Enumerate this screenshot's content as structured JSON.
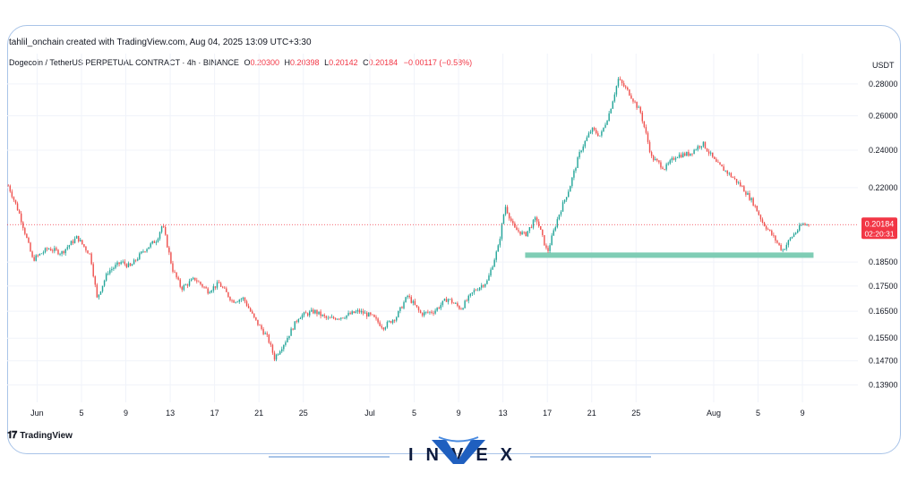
{
  "header": {
    "credit": "tahlil_onchain created with TradingView.com, Aug 04, 2025 13:09 UTC+3:30",
    "symbol": "Dogecoin / TetherUS PERPETUAL CONTRACT · 4h · BINANCE",
    "o_label": "O",
    "o_value": "0.20300",
    "h_label": "H",
    "h_value": "0.20398",
    "l_label": "L",
    "l_value": "0.20142",
    "c_label": "C",
    "c_value": "0.20184",
    "change": "−0.00117 (−0.58%)"
  },
  "footer": {
    "tradingview": "TradingView",
    "brand": "INVEX"
  },
  "colors": {
    "up": "#26a69a",
    "down": "#ef5350",
    "support": "#7fcdb5",
    "price_tag": "#f23645",
    "grid": "#f0f3fa"
  },
  "chart_data": {
    "type": "candlestick",
    "unit": "USDT",
    "y_ticks": [
      "0.28000",
      "0.26000",
      "0.24000",
      "0.22000",
      "0.18500",
      "0.17500",
      "0.16500",
      "0.15500",
      "0.14700",
      "0.13900"
    ],
    "y_tick_values": [
      0.28,
      0.26,
      0.24,
      0.22,
      0.185,
      0.175,
      0.165,
      0.155,
      0.147,
      0.139
    ],
    "log_scale": true,
    "x_ticks": [
      "Jun",
      "5",
      "9",
      "13",
      "17",
      "21",
      "25",
      "Jul",
      "5",
      "9",
      "13",
      "17",
      "21",
      "25",
      "Aug",
      "5",
      "9"
    ],
    "x_tick_days": [
      0,
      4,
      8,
      12,
      16,
      20,
      24,
      30,
      34,
      38,
      42,
      46,
      50,
      54,
      61,
      65,
      69
    ],
    "day_range": [
      -2.7,
      74
    ],
    "last_price": "0.20184",
    "countdown": "02:20:31",
    "last_value": 0.20184,
    "support_level": 0.188,
    "support_days": [
      44,
      70
    ],
    "price_path": [
      [
        -2.6,
        0.221
      ],
      [
        -1.6,
        0.207
      ],
      [
        -0.4,
        0.186
      ],
      [
        1.0,
        0.191
      ],
      [
        2.2,
        0.189
      ],
      [
        3.6,
        0.196
      ],
      [
        4.8,
        0.188
      ],
      [
        5.4,
        0.17
      ],
      [
        6.4,
        0.181
      ],
      [
        7.6,
        0.185
      ],
      [
        8.4,
        0.183
      ],
      [
        9.6,
        0.19
      ],
      [
        10.8,
        0.195
      ],
      [
        11.3,
        0.202
      ],
      [
        12.2,
        0.182
      ],
      [
        13.0,
        0.174
      ],
      [
        14.2,
        0.178
      ],
      [
        15.4,
        0.173
      ],
      [
        16.4,
        0.176
      ],
      [
        17.6,
        0.169
      ],
      [
        18.6,
        0.17
      ],
      [
        19.6,
        0.162
      ],
      [
        20.8,
        0.155
      ],
      [
        21.4,
        0.148
      ],
      [
        22.4,
        0.154
      ],
      [
        23.6,
        0.163
      ],
      [
        25.0,
        0.165
      ],
      [
        26.2,
        0.162
      ],
      [
        27.6,
        0.163
      ],
      [
        29.0,
        0.165
      ],
      [
        30.2,
        0.163
      ],
      [
        31.2,
        0.159
      ],
      [
        32.4,
        0.163
      ],
      [
        33.4,
        0.171
      ],
      [
        34.6,
        0.164
      ],
      [
        35.8,
        0.165
      ],
      [
        37.0,
        0.17
      ],
      [
        38.2,
        0.166
      ],
      [
        39.4,
        0.173
      ],
      [
        40.6,
        0.177
      ],
      [
        41.6,
        0.192
      ],
      [
        42.2,
        0.211
      ],
      [
        43.0,
        0.2
      ],
      [
        44.0,
        0.197
      ],
      [
        45.0,
        0.205
      ],
      [
        46.0,
        0.189
      ],
      [
        47.0,
        0.206
      ],
      [
        48.0,
        0.22
      ],
      [
        49.0,
        0.24
      ],
      [
        50.0,
        0.252
      ],
      [
        50.8,
        0.248
      ],
      [
        51.6,
        0.262
      ],
      [
        52.4,
        0.283
      ],
      [
        53.4,
        0.274
      ],
      [
        54.4,
        0.262
      ],
      [
        55.4,
        0.236
      ],
      [
        56.6,
        0.23
      ],
      [
        57.6,
        0.237
      ],
      [
        58.8,
        0.238
      ],
      [
        60.0,
        0.244
      ],
      [
        61.2,
        0.233
      ],
      [
        62.4,
        0.227
      ],
      [
        63.6,
        0.22
      ],
      [
        64.6,
        0.212
      ],
      [
        65.4,
        0.203
      ],
      [
        66.4,
        0.196
      ],
      [
        67.2,
        0.19
      ],
      [
        68.0,
        0.196
      ],
      [
        69.0,
        0.202
      ],
      [
        69.6,
        0.2018
      ]
    ]
  }
}
